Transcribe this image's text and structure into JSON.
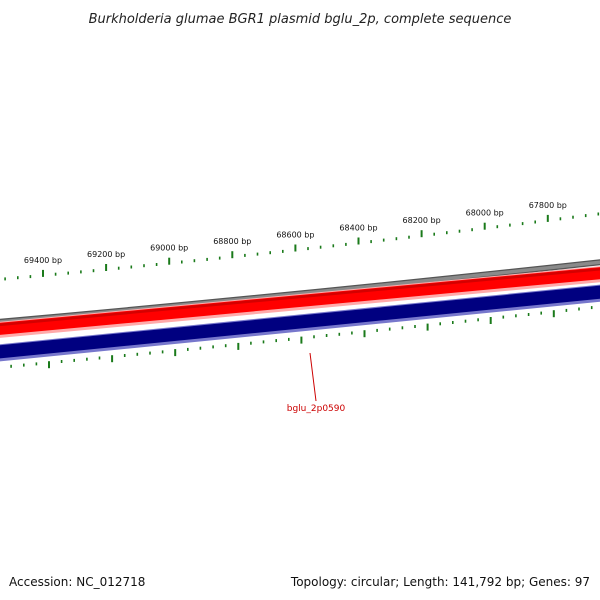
{
  "title": "Burkholderia glumae BGR1 plasmid bglu_2p, complete sequence",
  "footer": {
    "accession": "Accession: NC_012718",
    "summary": "Topology: circular; Length: 141,792 bp; Genes: 97"
  },
  "colors": {
    "background": "#ffffff",
    "ruler_ticks": "#1a7a1a",
    "backbone": "#808080",
    "forward_strand": "#ff0000",
    "reverse_strand": "#000080",
    "gene_label": "#cc0000"
  },
  "ruler": {
    "labels": [
      "69400 bp",
      "69200 bp",
      "69000 bp",
      "68800 bp",
      "68600 bp",
      "68400 bp",
      "68200 bp",
      "68000 bp",
      "67800 bp"
    ]
  },
  "tracks": [
    {
      "name": "backbone"
    },
    {
      "name": "forward-strand"
    },
    {
      "name": "reverse-strand"
    }
  ],
  "gene_labels": [
    {
      "name": "bglu_2p0590"
    }
  ]
}
